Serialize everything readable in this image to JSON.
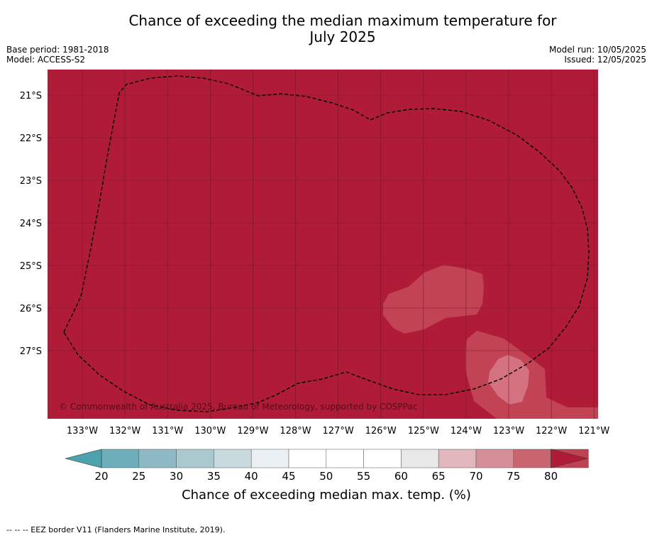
{
  "title": "Chance of exceeding the median maximum temperature for July 2025",
  "title_line1": "Chance of exceeding the median maximum temperature for",
  "title_line2": "July 2025",
  "base_period": "Base period: 1981-2018",
  "model": "Model: ACCESS-S2",
  "model_run": "Model run: 10/05/2025",
  "issued": "Issued: 12/05/2025",
  "copyright": "© Commonwealth of Australia 2025, Bureau of Meteorology, supported by COSPPac",
  "colors": {
    "background": "#b01c38",
    "band_75_80": "#c24454",
    "band_70_75": "#d47282",
    "grid": "#7a1426",
    "eez": "#000000"
  },
  "map": {
    "lat_labels": [
      "21°S",
      "22°S",
      "23°S",
      "24°S",
      "25°S",
      "26°S",
      "27°S"
    ],
    "lon_labels": [
      "133°W",
      "132°W",
      "131°W",
      "130°W",
      "129°W",
      "128°W",
      "127°W",
      "126°W",
      "125°W",
      "124°W",
      "123°W",
      "122°W",
      "121°W"
    ],
    "lat_values": [
      -21,
      -22,
      -23,
      -24,
      -25,
      -26,
      -27
    ],
    "lon_values": [
      -133,
      -132,
      -131,
      -130,
      -129,
      -128,
      -127,
      -126,
      -125,
      -124,
      -123,
      -122,
      -121
    ]
  },
  "colorbar": {
    "label": "Chance of exceeding median max. temp. (%)",
    "ticks": [
      "20",
      "25",
      "30",
      "35",
      "40",
      "45",
      "50",
      "55",
      "60",
      "65",
      "70",
      "75",
      "80"
    ],
    "colors": [
      "#6daeba",
      "#8dbac4",
      "#aac9cf",
      "#c9dadf",
      "#ebf1f3",
      "#ffffff",
      "#ffffff",
      "#ffffff",
      "#e8e8e8",
      "#e2b7bd",
      "#d58f98",
      "#c9656f",
      "#be4352"
    ],
    "under_color": "#4da2ad",
    "over_color": "#b01c38"
  },
  "footnote": "--  --  -- EEZ border V11 (Flanders Marine Institute, 2019)."
}
